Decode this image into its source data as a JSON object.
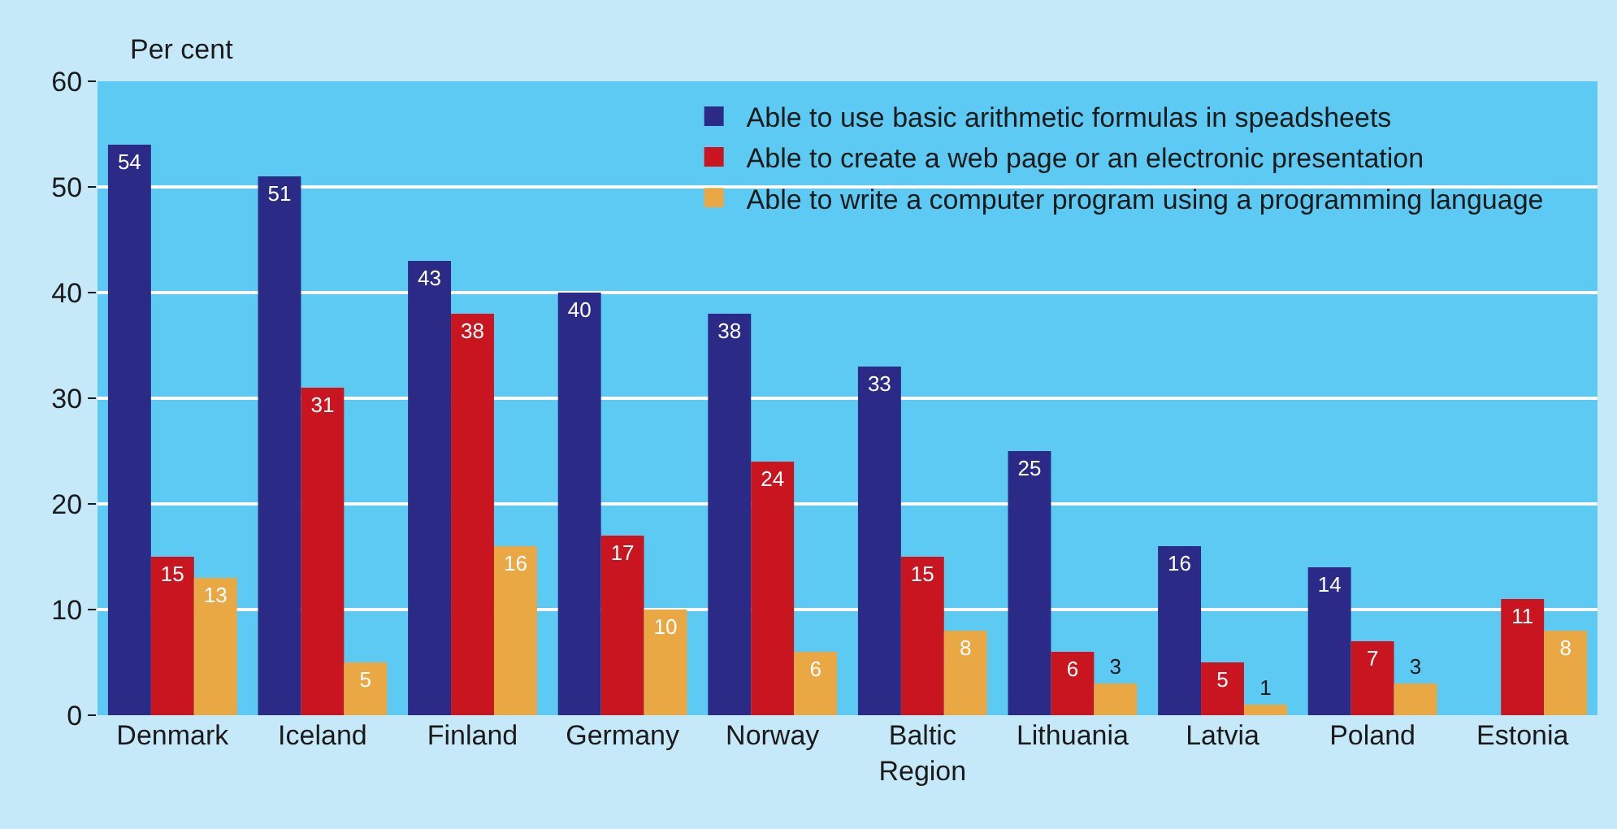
{
  "chart_data": {
    "type": "bar",
    "ylabel": "Per cent",
    "categories": [
      "Denmark",
      "Iceland",
      "Finland",
      "Germany",
      "Norway",
      "Baltic Region",
      "Lithuania",
      "Latvia",
      "Poland",
      "Estonia"
    ],
    "series": [
      {
        "name": "Able to use basic arithmetic formulas in speadsheets",
        "color": "#2b2a86",
        "values": [
          54,
          51,
          43,
          40,
          38,
          33,
          25,
          16,
          14,
          null
        ]
      },
      {
        "name": "Able to create a web page or an electronic presentation",
        "color": "#c8151f",
        "values": [
          15,
          31,
          38,
          17,
          24,
          15,
          6,
          5,
          7,
          11
        ]
      },
      {
        "name": "Able to write a computer program using a programming language",
        "color": "#e9a844",
        "values": [
          13,
          5,
          16,
          10,
          6,
          8,
          3,
          1,
          3,
          8
        ]
      }
    ],
    "ylim": [
      0,
      60
    ],
    "yticks": [
      0,
      10,
      20,
      30,
      40,
      50,
      60
    ],
    "grid": "y",
    "legend": "top right",
    "data_labels": true
  }
}
